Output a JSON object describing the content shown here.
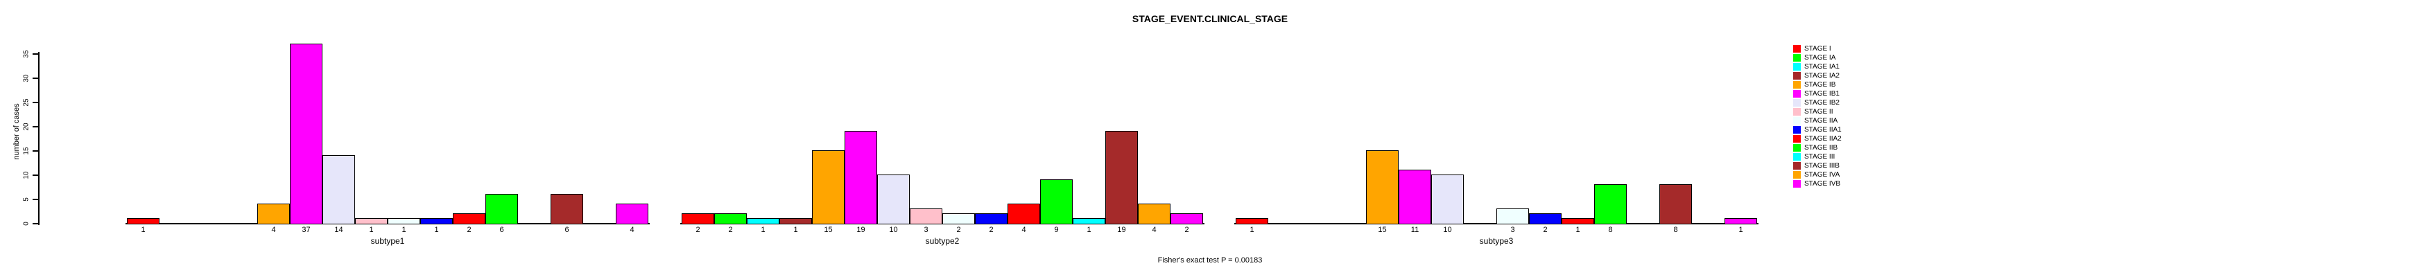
{
  "title": "STAGE_EVENT.CLINICAL_STAGE",
  "footer": "Fisher's exact test P = 0.00183",
  "y_axis": {
    "label": "number of cases",
    "ticks": [
      0,
      5,
      10,
      15,
      20,
      25,
      30,
      35
    ]
  },
  "chart_data": {
    "type": "bar",
    "title": "STAGE_EVENT.CLINICAL_STAGE",
    "xlabel": "",
    "ylabel": "number of cases",
    "ylim": [
      0,
      35
    ],
    "y_ticks": [
      0,
      5,
      10,
      15,
      20,
      25,
      30,
      35
    ],
    "grid": false,
    "legend_position": "right",
    "categories": [
      "STAGE I",
      "STAGE IA",
      "STAGE IA1",
      "STAGE IA2",
      "STAGE IB",
      "STAGE IB1",
      "STAGE IB2",
      "STAGE II",
      "STAGE IIA",
      "STAGE IIA1",
      "STAGE IIA2",
      "STAGE IIB",
      "STAGE III",
      "STAGE IIIB",
      "STAGE IVA",
      "STAGE IVB"
    ],
    "colors": [
      "#FF0000",
      "#00FF00",
      "#00FFFF",
      "#A52A2A",
      "#FFA500",
      "#FF00FF",
      "#E6E6FA",
      "#FFC0CB",
      "#F0FFFF",
      "#0000FF",
      "#FF0000",
      "#00FF00",
      "#00FFFF",
      "#A52A2A",
      "#FFA500",
      "#FF00FF"
    ],
    "series": [
      {
        "name": "subtype1",
        "values": [
          1,
          0,
          0,
          0,
          4,
          37,
          14,
          1,
          1,
          1,
          2,
          6,
          0,
          6,
          0,
          4
        ]
      },
      {
        "name": "subtype2",
        "values": [
          2,
          2,
          1,
          1,
          15,
          19,
          10,
          3,
          2,
          2,
          4,
          9,
          1,
          19,
          4,
          2
        ]
      },
      {
        "name": "subtype3",
        "values": [
          1,
          0,
          0,
          0,
          15,
          11,
          10,
          0,
          3,
          2,
          1,
          8,
          0,
          8,
          0,
          1
        ]
      }
    ],
    "bar_value_labels_shown": true,
    "annotation": "Fisher's exact test P = 0.00183"
  }
}
